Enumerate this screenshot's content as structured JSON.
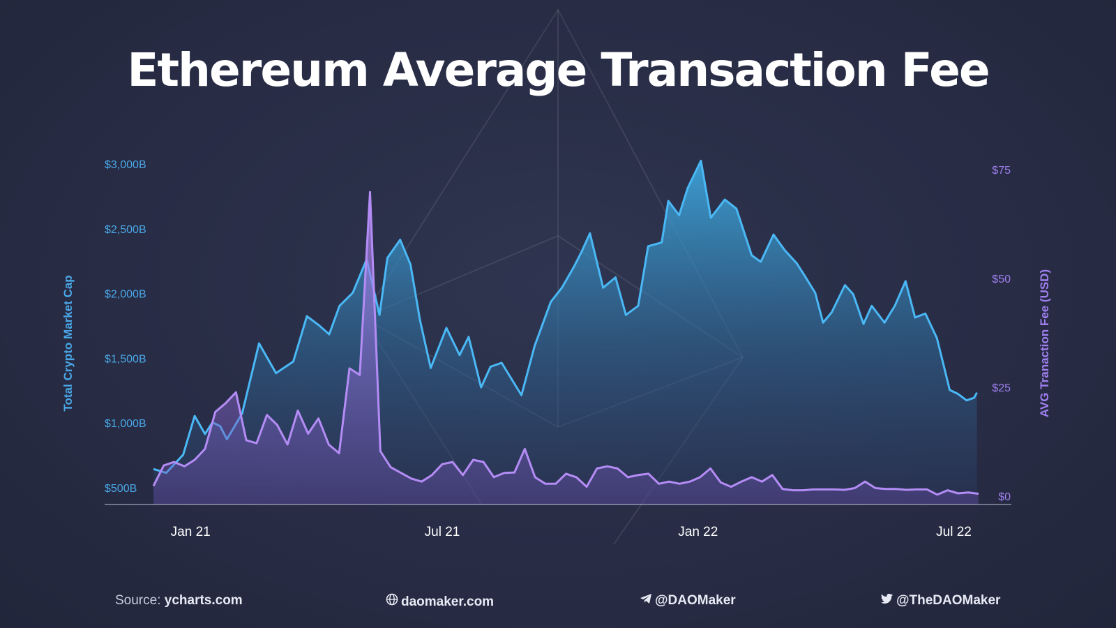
{
  "title": "Ethereum Average Transaction Fee",
  "footer": {
    "source_prefix": "Source: ",
    "source_site": "ycharts.com",
    "website": "daomaker.com",
    "website_icon": "globe-icon",
    "telegram": "@DAOMaker",
    "telegram_icon": "telegram-icon",
    "twitter": "@TheDAOMaker",
    "twitter_icon": "twitter-icon"
  },
  "colors": {
    "market_cap": "#4ab8f5",
    "fee": "#b48cf5",
    "left_axis_text": "#4aa8e8",
    "right_axis_text": "#a080f0"
  },
  "chart_data": {
    "type": "area",
    "title": "Ethereum Average Transaction Fee",
    "xlabel": "",
    "x_ticks": [
      {
        "label": "Jan 21",
        "t": 0.9
      },
      {
        "label": "Jul 21",
        "t": 7.0
      },
      {
        "label": "Jan 22",
        "t": 13.2
      },
      {
        "label": "Jul 22",
        "t": 19.4
      }
    ],
    "y_left": {
      "label": "Total Crypto Market Cap",
      "ticks": [
        "$500B",
        "$1,000B",
        "$1,500B",
        "$2,000B",
        "$2,500B",
        "$3,000B"
      ],
      "tick_values": [
        500,
        1000,
        1500,
        2000,
        2500,
        3000
      ],
      "range": [
        370,
        3000
      ]
    },
    "y_right": {
      "label": "AVG Tranaction Fee (USD)",
      "ticks": [
        "$0",
        "$25",
        "$50",
        "$75"
      ],
      "tick_values": [
        0,
        25,
        50,
        75
      ],
      "range": [
        0,
        75
      ]
    },
    "x_unit_note": "x values are months since January 2021",
    "series": [
      {
        "name": "Total Crypto Market Cap",
        "axis": "left",
        "x": [
          0.0,
          0.31,
          0.72,
          1.0,
          1.25,
          1.43,
          1.62,
          1.78,
          2.15,
          2.56,
          2.97,
          3.39,
          3.72,
          4.01,
          4.26,
          4.51,
          4.83,
          5.17,
          5.48,
          5.67,
          5.98,
          6.23,
          6.46,
          6.72,
          7.1,
          7.42,
          7.64,
          7.94,
          8.17,
          8.44,
          8.92,
          9.24,
          9.63,
          9.9,
          10.19,
          10.38,
          10.58,
          10.9,
          11.2,
          11.45,
          11.75,
          11.99,
          12.32,
          12.48,
          12.74,
          12.95,
          13.27,
          13.51,
          13.85,
          14.13,
          14.5,
          14.72,
          15.03,
          15.3,
          15.59,
          15.77,
          16.04,
          16.23,
          16.44,
          16.76,
          16.96,
          17.21,
          17.41,
          17.72,
          17.97,
          18.23,
          18.46,
          18.71,
          18.99,
          19.3,
          19.5,
          19.71,
          19.89,
          19.96
        ],
        "y": [
          650,
          620,
          760,
          1060,
          920,
          1010,
          980,
          880,
          1080,
          1620,
          1390,
          1480,
          1830,
          1760,
          1690,
          1910,
          2010,
          2270,
          1840,
          2280,
          2420,
          2230,
          1800,
          1430,
          1740,
          1530,
          1670,
          1280,
          1440,
          1470,
          1220,
          1600,
          1940,
          2050,
          2210,
          2330,
          2470,
          2050,
          2130,
          1840,
          1910,
          2370,
          2400,
          2720,
          2610,
          2820,
          3030,
          2590,
          2730,
          2660,
          2300,
          2250,
          2460,
          2340,
          2240,
          2150,
          2010,
          1780,
          1860,
          2070,
          2000,
          1770,
          1910,
          1780,
          1910,
          2100,
          1820,
          1850,
          1660,
          1260,
          1230,
          1180,
          1200,
          1240
        ]
      },
      {
        "name": "AVG Tranaction Fee (USD)",
        "axis": "right",
        "x": [
          0.0,
          0.25,
          0.5,
          0.75,
          1.0,
          1.25,
          1.5,
          1.75,
          2.0,
          2.25,
          2.5,
          2.75,
          3.0,
          3.25,
          3.5,
          3.75,
          4.0,
          4.25,
          4.5,
          4.75,
          5.0,
          5.25,
          5.5,
          5.75,
          6.0,
          6.25,
          6.5,
          6.75,
          7.0,
          7.25,
          7.5,
          7.75,
          8.0,
          8.25,
          8.5,
          8.75,
          9.0,
          9.25,
          9.5,
          9.75,
          10.0,
          10.25,
          10.5,
          10.75,
          11.0,
          11.25,
          11.5,
          11.75,
          12.0,
          12.25,
          12.5,
          12.75,
          13.0,
          13.25,
          13.5,
          13.75,
          14.0,
          14.25,
          14.5,
          14.75,
          15.0,
          15.25,
          15.5,
          15.75,
          16.0,
          16.25,
          16.5,
          16.75,
          17.0,
          17.25,
          17.5,
          17.75,
          18.0,
          18.25,
          18.5,
          18.75,
          19.0,
          19.25,
          19.5,
          19.75,
          20.0
        ],
        "y": [
          2.5,
          7.2,
          8.0,
          7.0,
          8.5,
          11.0,
          19.5,
          21.5,
          24.0,
          13.0,
          12.3,
          18.8,
          16.5,
          12.0,
          19.8,
          14.5,
          18.0,
          12.0,
          10.0,
          29.5,
          28.0,
          70.0,
          10.5,
          6.8,
          5.5,
          4.2,
          3.5,
          5.0,
          7.5,
          8.0,
          5.0,
          8.5,
          8.0,
          4.5,
          5.5,
          5.6,
          11.0,
          4.5,
          3.0,
          3.0,
          5.3,
          4.5,
          2.3,
          6.5,
          7.0,
          6.5,
          4.5,
          5.0,
          5.3,
          3.0,
          3.5,
          3.0,
          3.5,
          4.5,
          6.5,
          3.3,
          2.3,
          3.5,
          4.5,
          3.5,
          5.0,
          1.8,
          1.5,
          1.5,
          1.7,
          1.7,
          1.7,
          1.6,
          2.0,
          3.5,
          2.0,
          1.8,
          1.8,
          1.6,
          1.7,
          1.7,
          0.5,
          1.5,
          0.8,
          1.0,
          0.7
        ]
      }
    ],
    "grid": false,
    "legend": "none"
  }
}
